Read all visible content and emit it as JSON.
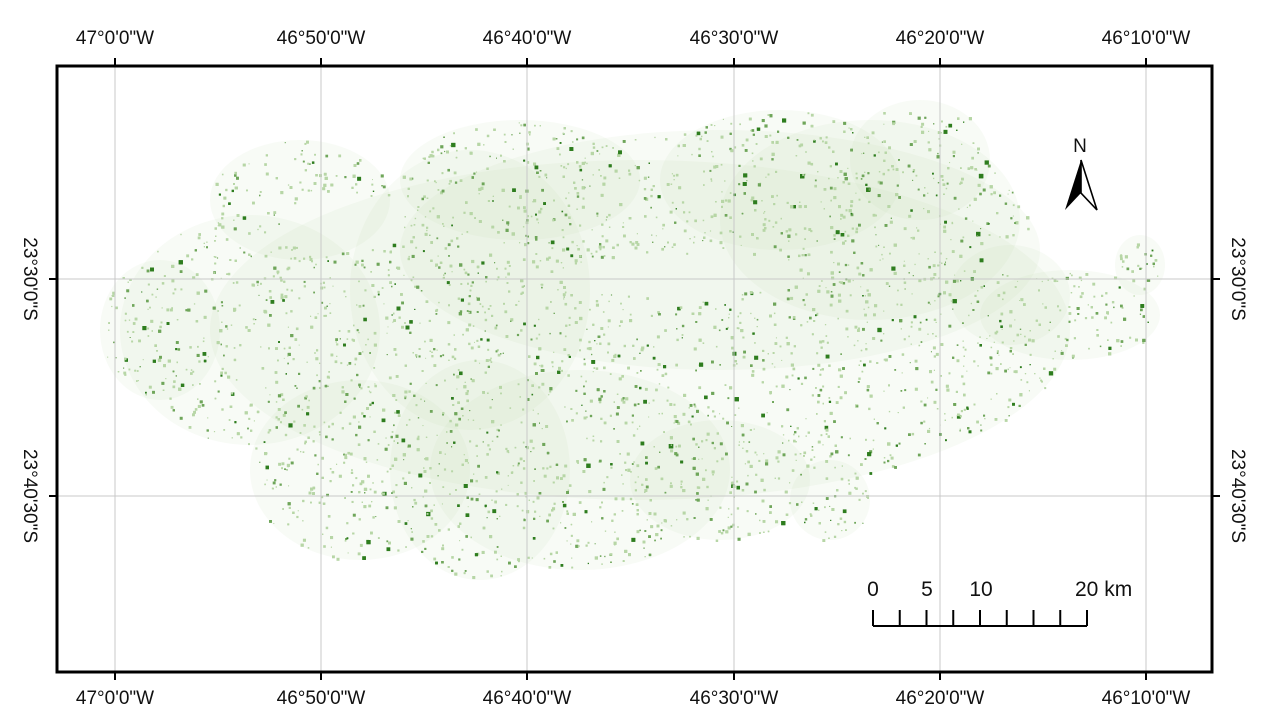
{
  "map": {
    "top_lon_labels": [
      "47°0'0\"W",
      "46°50'0\"W",
      "46°40'0\"W",
      "46°30'0\"W",
      "46°20'0\"W",
      "46°10'0\"W"
    ],
    "bottom_lon_labels": [
      "47°0'0\"W",
      "46°50'0\"W",
      "46°40'0\"W",
      "46°30'0\"W",
      "46°20'0\"W",
      "46°10'0\"W"
    ],
    "left_lat_labels": [
      "23°30'0\"S",
      "23°40'30\"S"
    ],
    "right_lat_labels": [
      "23°30'0\"S",
      "23°40'30\"S"
    ],
    "north_arrow_label": "N",
    "scale_bar": {
      "labels": [
        "0",
        "5",
        "10",
        "20 km"
      ],
      "tick_values_km": [
        0,
        2.5,
        5,
        7.5,
        10,
        12.5,
        15,
        17.5,
        20
      ]
    },
    "colors": {
      "vegetation_light": "#b7d6a6",
      "vegetation_mid": "#6fa65a",
      "vegetation_dark": "#2e7d1e",
      "grid": "#c8c8c8",
      "frame": "#000000"
    }
  }
}
